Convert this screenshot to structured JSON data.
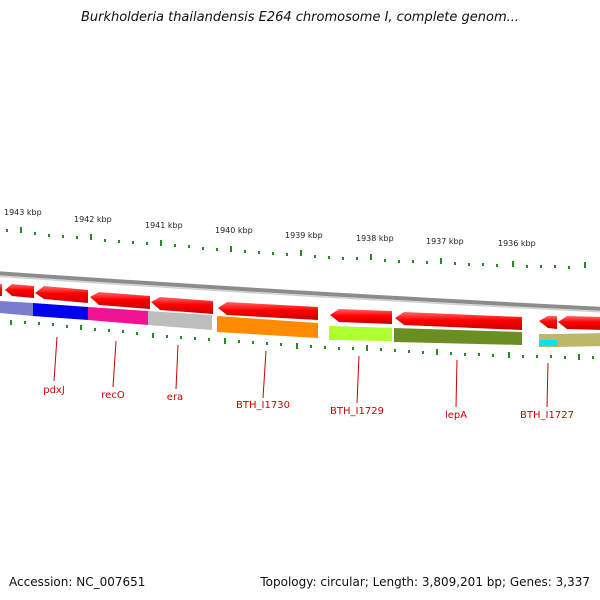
{
  "header": {
    "title": "Burkholderia thailandensis E264 chromosome I, complete genom..."
  },
  "footer": {
    "accession": "Accession: NC_007651",
    "summary": "Topology: circular; Length: 3,809,201 bp; Genes: 3,337"
  },
  "scale_labels": [
    "1943 kbp",
    "1942 kbp",
    "1941 kbp",
    "1940 kbp",
    "1939 kbp",
    "1938 kbp",
    "1937 kbp",
    "1936 kbp"
  ],
  "genes": [
    {
      "label": "pdxJ",
      "color": "#0000ee"
    },
    {
      "label": "recO",
      "color": "#ee1493"
    },
    {
      "label": "era",
      "color": "#bdbdbd"
    },
    {
      "label": "BTH_I1730",
      "color": "#ff8c00"
    },
    {
      "label": "BTH_I1729",
      "color": "#adff2f"
    },
    {
      "label": "lepA",
      "color": "#6b8e23"
    },
    {
      "label": "BTH_I1727",
      "color": "#00e5ee"
    }
  ],
  "colors": {
    "strand_arrow": "#ff0000",
    "tick": "#228b22",
    "label": "#cc0000",
    "backbone": "#888888"
  }
}
